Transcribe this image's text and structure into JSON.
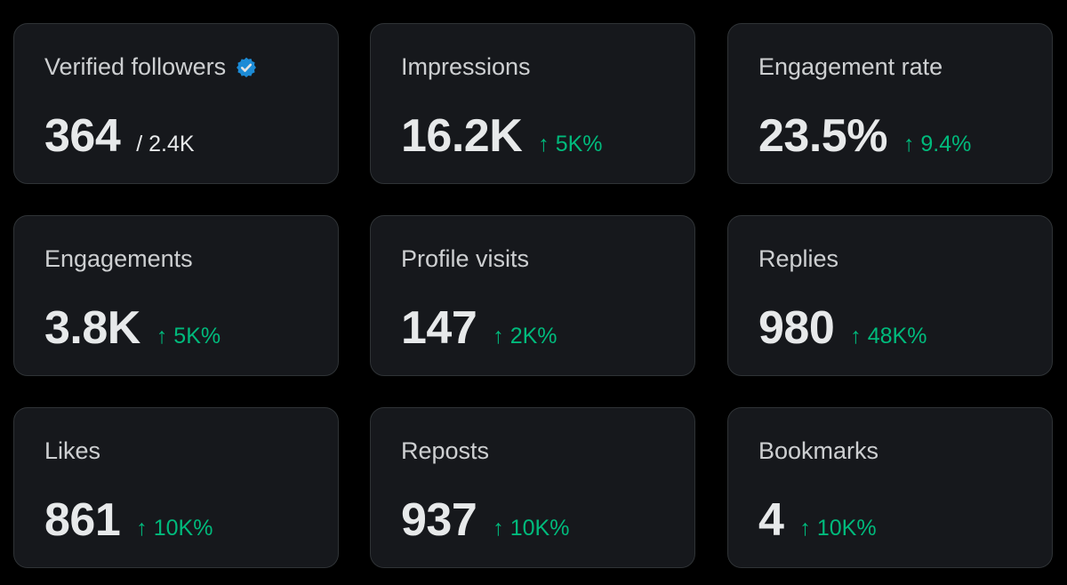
{
  "cards": [
    {
      "label": "Verified followers",
      "value": "364",
      "total": "/ 2.4K",
      "badge_icon": "verified-badge-icon"
    },
    {
      "label": "Impressions",
      "value": "16.2K",
      "delta": "5K%"
    },
    {
      "label": "Engagement rate",
      "value": "23.5%",
      "delta": "9.4%"
    },
    {
      "label": "Engagements",
      "value": "3.8K",
      "delta": "5K%"
    },
    {
      "label": "Profile visits",
      "value": "147",
      "delta": "2K%"
    },
    {
      "label": "Replies",
      "value": "980",
      "delta": "48K%"
    },
    {
      "label": "Likes",
      "value": "861",
      "delta": "10K%"
    },
    {
      "label": "Reposts",
      "value": "937",
      "delta": "10K%"
    },
    {
      "label": "Bookmarks",
      "value": "4",
      "delta": "10K%"
    }
  ],
  "delta_prefix": "↑",
  "colors": {
    "background": "#000000",
    "card_background": "#16181c",
    "card_border": "#2f3336",
    "text": "#e7e9ea",
    "positive": "#00ba7c",
    "verified": "#1d9bf0"
  }
}
